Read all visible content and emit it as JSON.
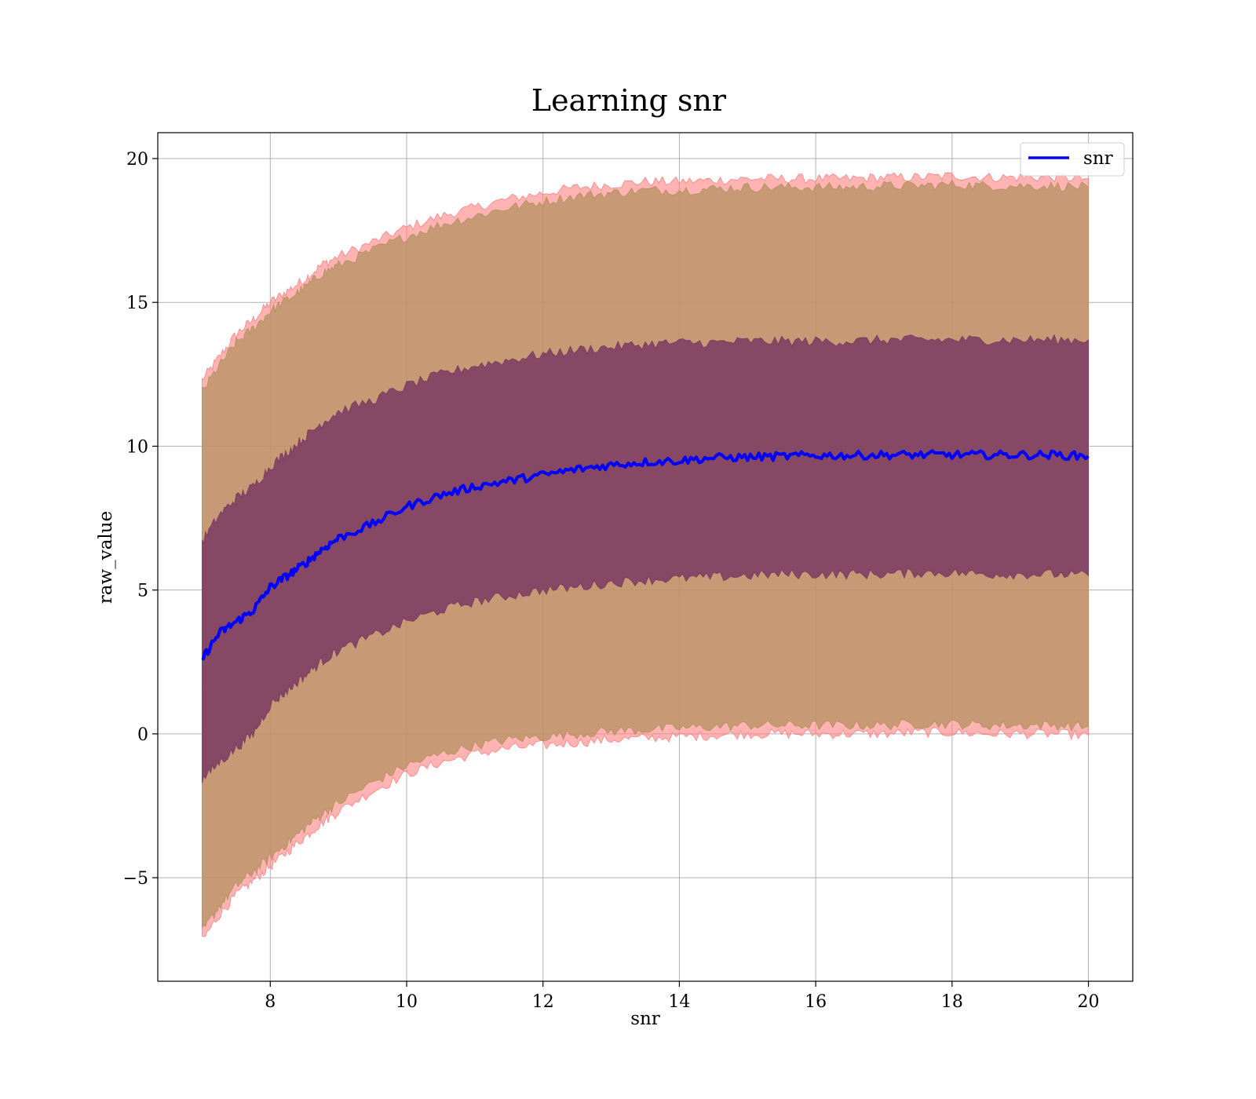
{
  "chart_data": {
    "type": "line",
    "title": "Learning snr",
    "xlabel": "snr",
    "ylabel": "raw_value",
    "xlim": [
      6.35,
      20.65
    ],
    "ylim": [
      -8.6,
      20.9
    ],
    "xticks": [
      8,
      10,
      12,
      14,
      16,
      18,
      20
    ],
    "xtick_labels": [
      "8",
      "10",
      "12",
      "14",
      "16",
      "18",
      "20"
    ],
    "yticks": [
      -5,
      0,
      5,
      10,
      15,
      20
    ],
    "ytick_labels": [
      "−5",
      "0",
      "5",
      "10",
      "15",
      "20"
    ],
    "grid": true,
    "legend": {
      "position": "top-right",
      "entries": [
        "snr"
      ]
    },
    "x": [
      7.0,
      7.25,
      7.5,
      7.75,
      8.0,
      8.25,
      8.5,
      8.75,
      9.0,
      9.5,
      10.0,
      10.5,
      11.0,
      11.5,
      12.0,
      12.5,
      13.0,
      13.5,
      14.0,
      14.5,
      15.0,
      15.5,
      16.0,
      16.5,
      17.0,
      17.5,
      18.0,
      18.5,
      19.0,
      19.5,
      20.0
    ],
    "series": [
      {
        "name": "snr",
        "role": "line",
        "color": "#0000ff",
        "values": [
          2.6,
          3.5,
          3.9,
          4.3,
          5.1,
          5.5,
          5.9,
          6.4,
          6.8,
          7.3,
          7.9,
          8.3,
          8.6,
          8.8,
          9.0,
          9.2,
          9.35,
          9.45,
          9.5,
          9.6,
          9.62,
          9.65,
          9.68,
          9.68,
          9.7,
          9.7,
          9.7,
          9.7,
          9.7,
          9.7,
          9.65
        ]
      },
      {
        "role": "outer-band",
        "color": "#ff8080",
        "upper": [
          12.3,
          13.1,
          13.9,
          14.4,
          15.0,
          15.4,
          15.8,
          16.3,
          16.6,
          17.1,
          17.6,
          18.0,
          18.3,
          18.6,
          18.8,
          19.0,
          19.1,
          19.2,
          19.2,
          19.25,
          19.3,
          19.3,
          19.3,
          19.3,
          19.35,
          19.35,
          19.4,
          19.35,
          19.35,
          19.35,
          19.3
        ],
        "lower": [
          -7.2,
          -6.3,
          -5.6,
          -5.1,
          -4.6,
          -4.1,
          -3.6,
          -3.1,
          -2.7,
          -2.0,
          -1.4,
          -1.0,
          -0.7,
          -0.5,
          -0.4,
          -0.3,
          -0.2,
          -0.15,
          -0.1,
          -0.05,
          0.0,
          0.0,
          0.0,
          0.0,
          0.0,
          0.05,
          0.05,
          0.0,
          0.0,
          0.0,
          -0.05
        ]
      },
      {
        "role": "mid-band",
        "color": "#b49060",
        "upper": [
          11.9,
          12.8,
          13.6,
          14.1,
          14.7,
          15.1,
          15.5,
          16.0,
          16.3,
          16.8,
          17.3,
          17.7,
          18.0,
          18.3,
          18.5,
          18.7,
          18.8,
          18.9,
          18.9,
          18.95,
          19.0,
          19.0,
          19.0,
          19.0,
          19.05,
          19.05,
          19.1,
          19.05,
          19.05,
          19.05,
          19.0
        ],
        "lower": [
          -6.9,
          -6.0,
          -5.3,
          -4.8,
          -4.3,
          -3.8,
          -3.3,
          -2.8,
          -2.4,
          -1.7,
          -1.1,
          -0.7,
          -0.4,
          -0.2,
          -0.1,
          0.0,
          0.1,
          0.15,
          0.2,
          0.25,
          0.3,
          0.3,
          0.3,
          0.3,
          0.3,
          0.35,
          0.35,
          0.3,
          0.3,
          0.3,
          0.25
        ]
      },
      {
        "role": "inner-band",
        "color": "#7a3a62",
        "upper": [
          6.7,
          7.6,
          8.2,
          8.6,
          9.3,
          9.8,
          10.3,
          10.8,
          11.2,
          11.6,
          12.1,
          12.5,
          12.8,
          13.0,
          13.2,
          13.35,
          13.45,
          13.55,
          13.6,
          13.6,
          13.65,
          13.65,
          13.65,
          13.65,
          13.7,
          13.7,
          13.7,
          13.7,
          13.7,
          13.7,
          13.7
        ],
        "lower": [
          -1.6,
          -1.0,
          -0.5,
          0.0,
          1.0,
          1.5,
          2.0,
          2.5,
          2.9,
          3.4,
          3.9,
          4.3,
          4.6,
          4.8,
          5.0,
          5.1,
          5.25,
          5.35,
          5.4,
          5.45,
          5.5,
          5.55,
          5.55,
          5.55,
          5.55,
          5.6,
          5.6,
          5.55,
          5.55,
          5.55,
          5.5
        ]
      }
    ]
  }
}
